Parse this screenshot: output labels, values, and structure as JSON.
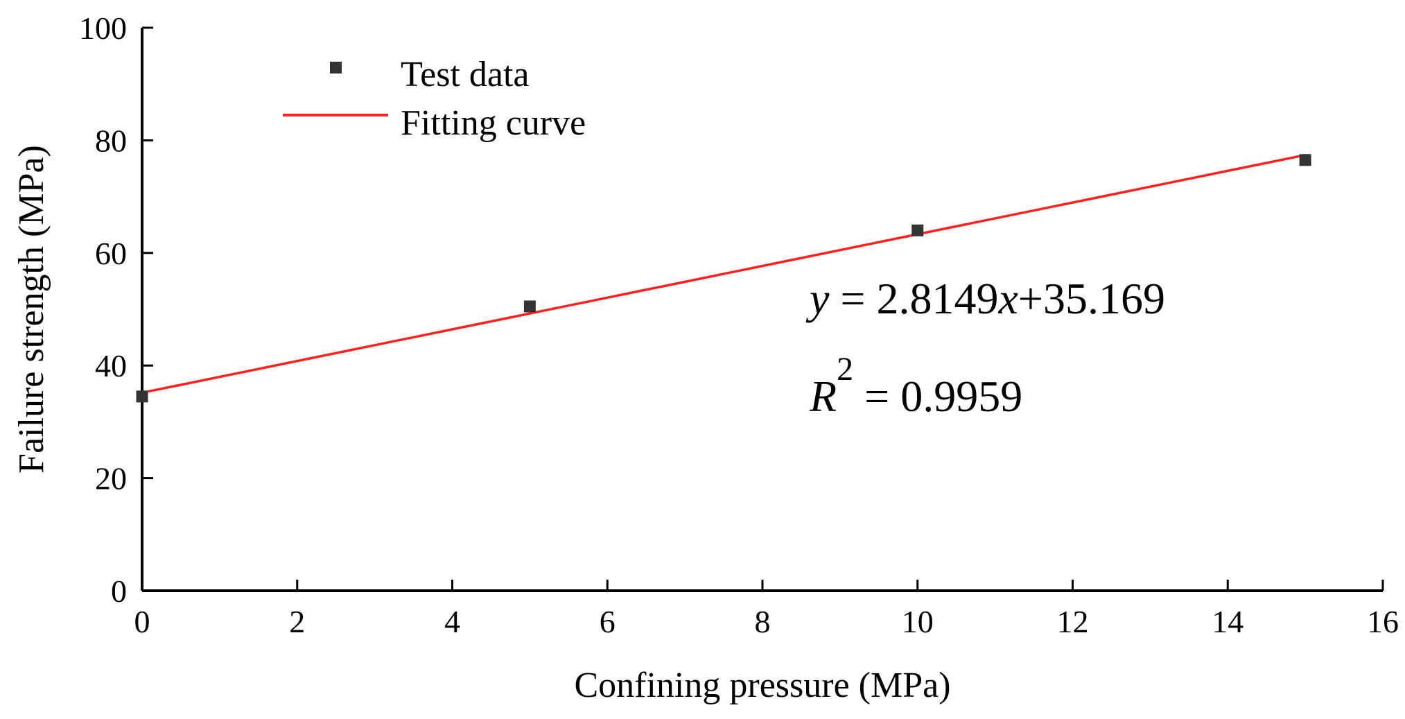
{
  "chart_data": {
    "type": "scatter",
    "title": "",
    "xlabel": "Confining pressure (MPa)",
    "ylabel": "Failure strength (MPa)",
    "xlim": [
      0,
      16
    ],
    "ylim": [
      0,
      100
    ],
    "xticks": [
      "0",
      "2",
      "4",
      "6",
      "8",
      "10",
      "12",
      "14",
      "16"
    ],
    "yticks": [
      "0",
      "20",
      "40",
      "60",
      "80",
      "100"
    ],
    "grid": false,
    "legend_position": "top-left",
    "series": [
      {
        "name": "Test data",
        "kind": "scatter",
        "marker": "square",
        "color": "#333333",
        "x": [
          0,
          5,
          10,
          15
        ],
        "y": [
          34.5,
          50.5,
          64,
          76.5
        ]
      },
      {
        "name": "Fitting curve",
        "kind": "line",
        "color": "#ff2020",
        "slope": 2.8149,
        "intercept": 35.169,
        "x_range": [
          0,
          15
        ]
      }
    ],
    "annotations": {
      "equation_y": "y",
      "equation_eq": " = 2.8149",
      "equation_x": "x",
      "equation_rest": "+35.169",
      "r2_r": "R",
      "r2_sup": "2",
      "r2_rest": " = 0.9959"
    }
  }
}
